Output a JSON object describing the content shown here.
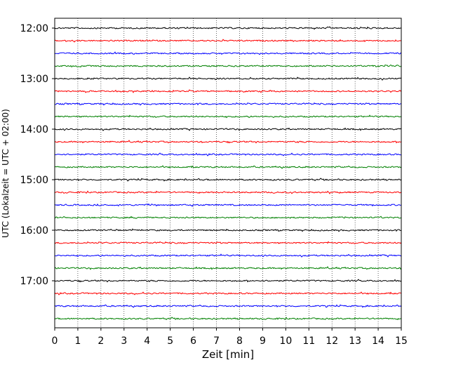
{
  "chart_data": {
    "type": "line",
    "title": "",
    "xlabel": "Zeit  [min]",
    "ylabel": "UTC (Lokalzeit = UTC + 02:00)",
    "xlim": [
      0,
      15
    ],
    "x_ticks": [
      "0",
      "1",
      "2",
      "3",
      "4",
      "5",
      "6",
      "7",
      "8",
      "9",
      "10",
      "11",
      "12",
      "13",
      "14",
      "15"
    ],
    "y_tick_labels": [
      "12:00",
      "13:00",
      "14:00",
      "15:00",
      "16:00",
      "17:00"
    ],
    "grid": "vertical dotted lines at each minute",
    "trace_interval_minutes": 15,
    "traces_start": "12:00",
    "trace_count": 24,
    "trace_colors": [
      "#000000",
      "#ff0000",
      "#0000ff",
      "#008000"
    ],
    "trace_amplitude_note": "seismic noise traces, roughly constant small amplitude"
  }
}
